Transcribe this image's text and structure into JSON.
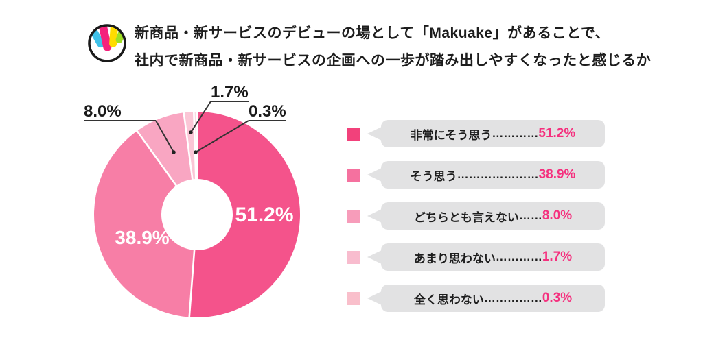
{
  "header": {
    "title_line1": "新商品・新サービスのデビューの場として「Makuake」があることで、",
    "title_line2": "社内で新商品・新サービスの企画への一歩が踏み出しやすくなったと感じるか"
  },
  "chart_data": {
    "type": "pie",
    "donut": true,
    "title": "新商品・新サービスのデビューの場として「Makuake」があることで、社内で新商品・新サービスの企画への一歩が踏み出しやすくなったと感じるか",
    "categories": [
      "非常にそう思う",
      "そう思う",
      "どちらとも言えない",
      "あまり思わない",
      "全く思わない"
    ],
    "values": [
      51.2,
      38.9,
      8.0,
      1.7,
      0.3
    ],
    "labels": [
      "51.2%",
      "38.9%",
      "8.0%",
      "1.7%",
      "0.3%"
    ],
    "start": "top",
    "direction": "clockwise",
    "segment_colors": [
      "#F4538B",
      "#F77EA6",
      "#F9A6C2",
      "#FBC6D6",
      "#FBD9E2"
    ],
    "legend_position": "right"
  },
  "legend": {
    "swatch_colors": [
      "#F2417B",
      "#F5719F",
      "#F79CBA",
      "#F8BCCE",
      "#F9BFCB"
    ],
    "bubble_color": "#E2E2E3",
    "value_color": "#F5307E",
    "items": [
      {
        "label": "非常にそう思う",
        "leader": "…………",
        "value": "51.2%"
      },
      {
        "label": "そう思う",
        "leader": "…………………",
        "value": "38.9%"
      },
      {
        "label": "どちらとも言えない",
        "leader": "……",
        "value": "8.0%"
      },
      {
        "label": "あまり思わない",
        "leader": "…………",
        "value": "1.7%"
      },
      {
        "label": "全く思わない",
        "leader": "……………",
        "value": "0.3%"
      }
    ]
  },
  "colors": {
    "background": "#FFFFFF",
    "text": "#1D1D1D",
    "callout_line": "#333333",
    "inside_label": "#FFFFFF",
    "logo": {
      "outline": "#1A1A1A",
      "blue": "#3EC1E9",
      "pink": "#F4217C",
      "yellow": "#FFDC00",
      "green": "#9FE024"
    }
  }
}
